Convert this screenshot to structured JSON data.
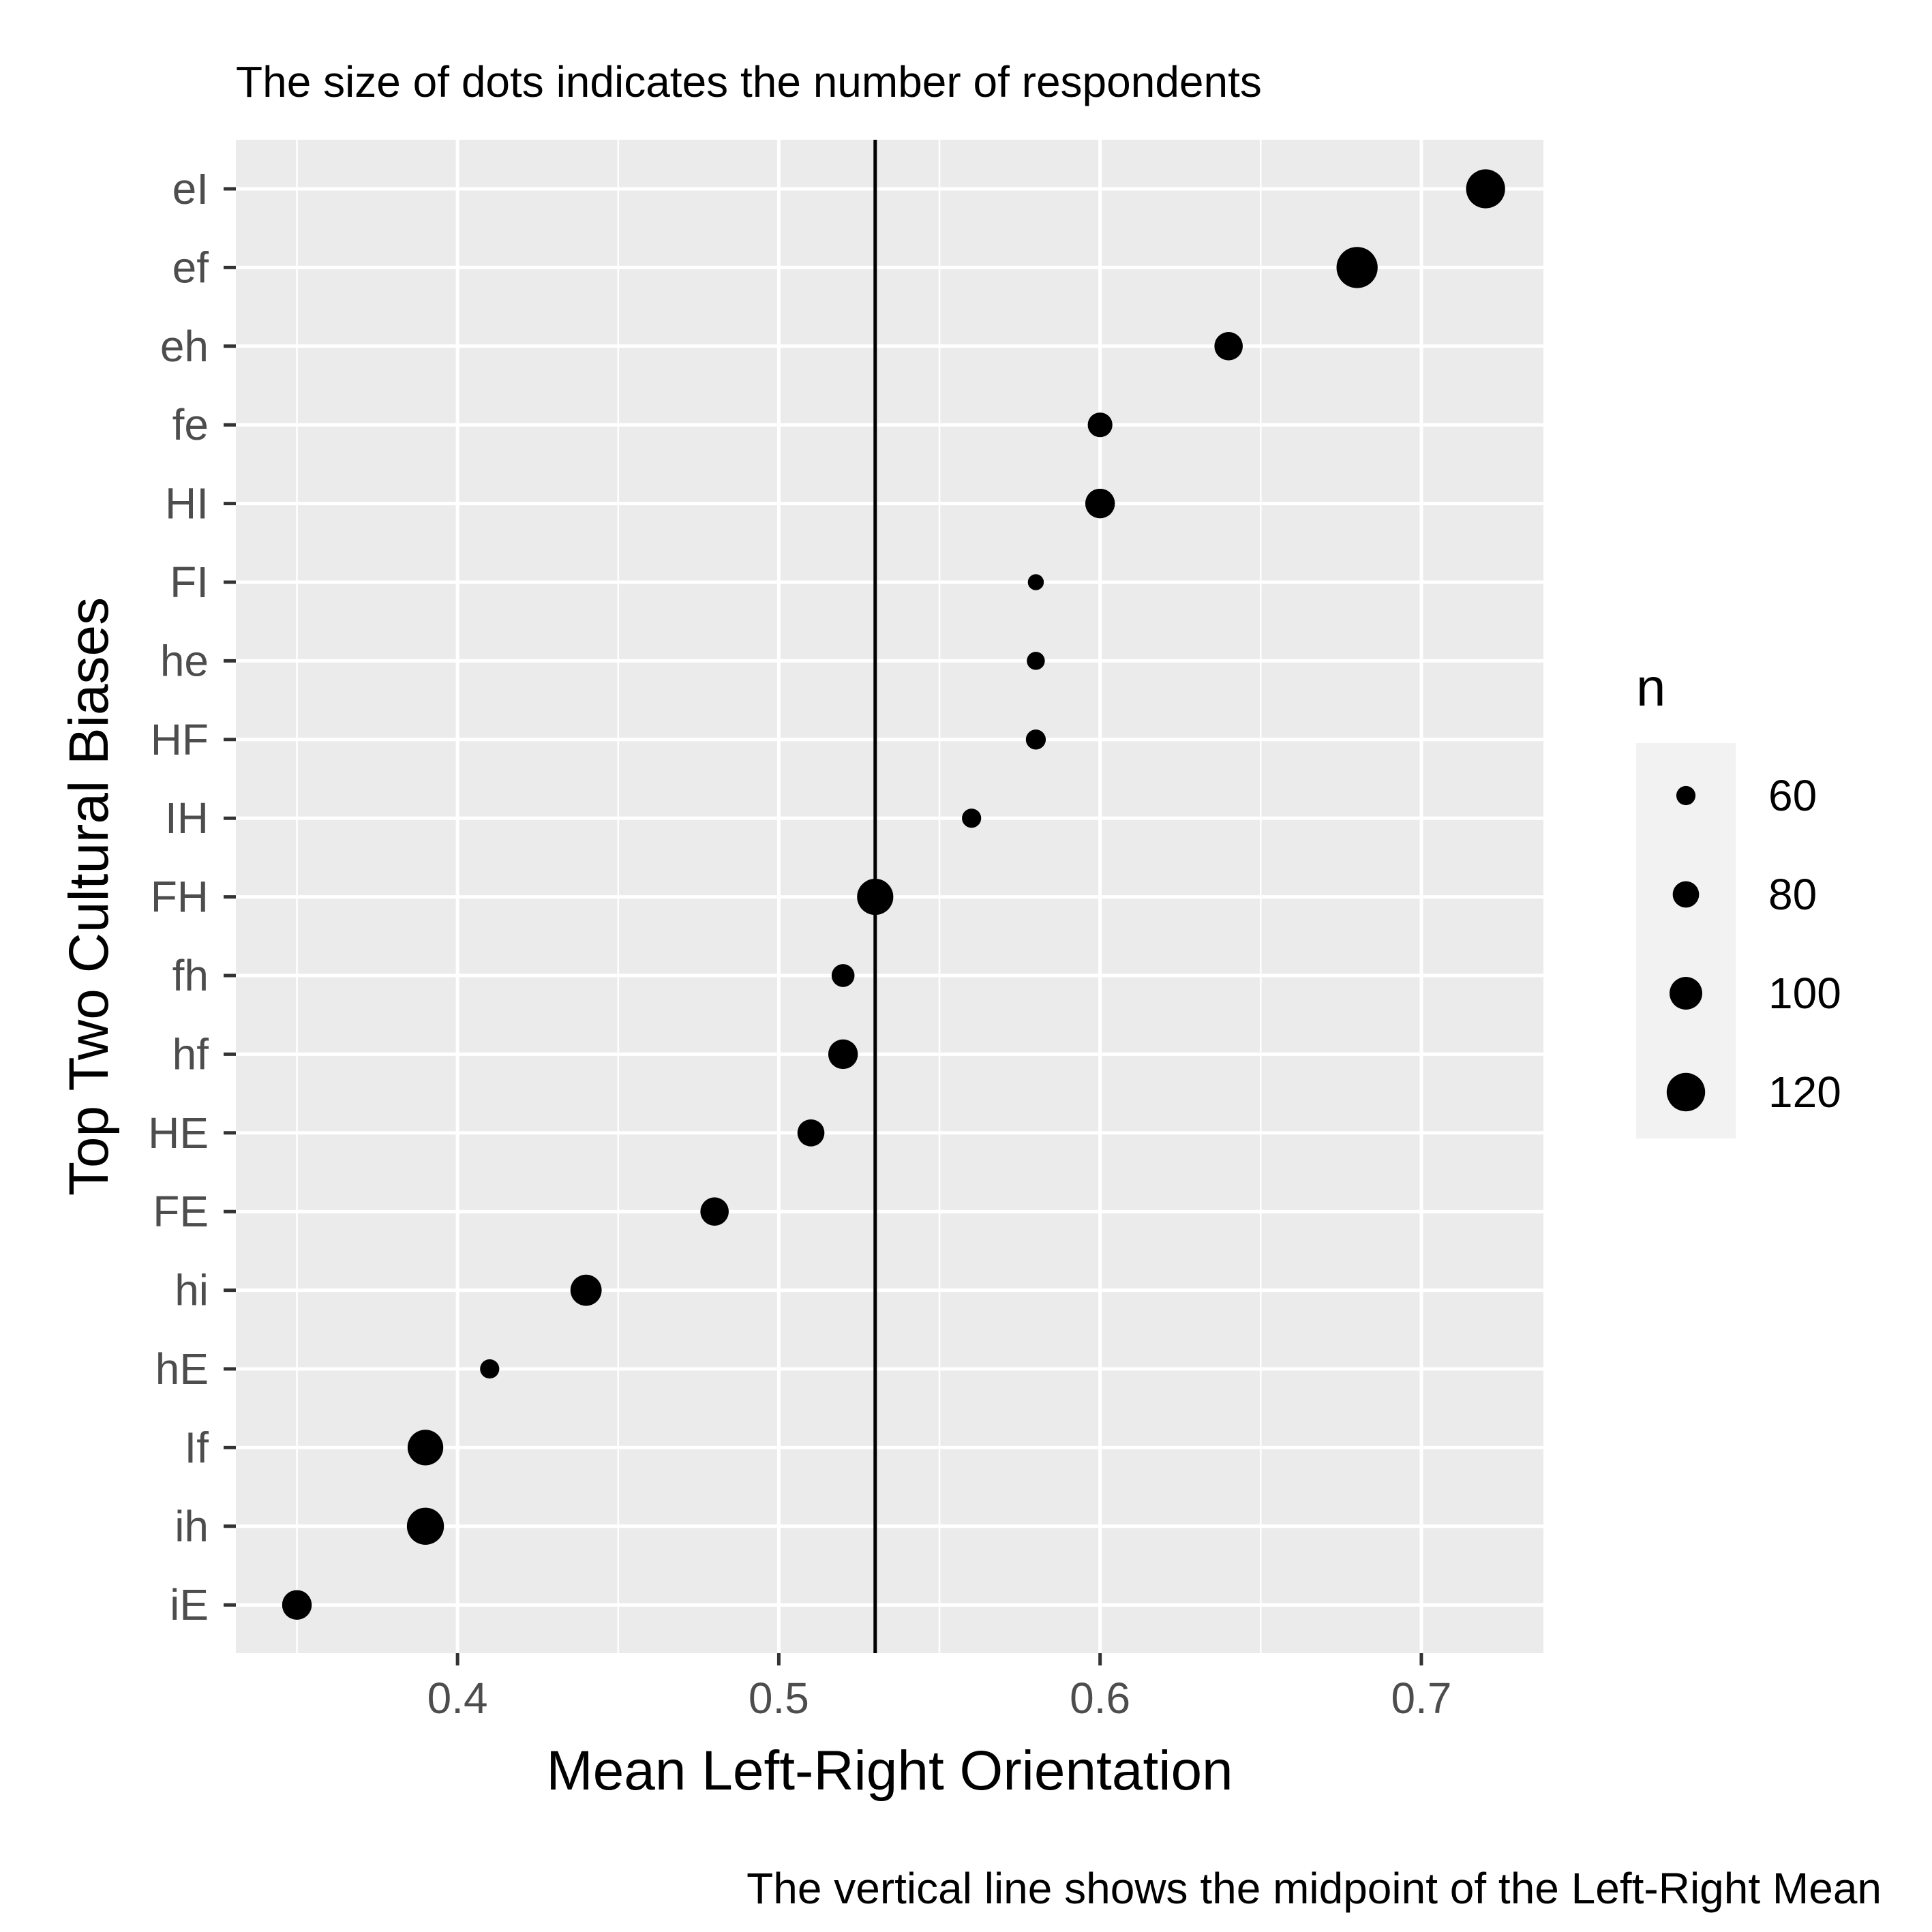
{
  "chart_data": {
    "type": "scatter",
    "subtitle": "The size of dots indicates the number of respondents",
    "caption": "The vertical line shows the midpoint of the Left-Right Mean",
    "xlabel": "Mean Left-Right Orientation",
    "ylabel": "Top Two Cultural Biases",
    "xlim": [
      0.331,
      0.738
    ],
    "x_ticks": [
      0.4,
      0.5,
      0.6,
      0.7
    ],
    "x_tick_labels": [
      "0.4",
      "0.5",
      "0.6",
      "0.7"
    ],
    "x_minor_ticks": [
      0.35,
      0.45,
      0.55,
      0.65
    ],
    "vline_x": 0.53,
    "categories": [
      "eI",
      "ef",
      "eh",
      "fe",
      "HI",
      "FI",
      "he",
      "HF",
      "IH",
      "FH",
      "fh",
      "hf",
      "HE",
      "FE",
      "hi",
      "hE",
      "If",
      "ih",
      "iE"
    ],
    "points": [
      {
        "label": "eI",
        "x": 0.72,
        "n": 122
      },
      {
        "label": "ef",
        "x": 0.68,
        "n": 130
      },
      {
        "label": "eh",
        "x": 0.64,
        "n": 86
      },
      {
        "label": "fe",
        "x": 0.6,
        "n": 75
      },
      {
        "label": "HI",
        "x": 0.6,
        "n": 90
      },
      {
        "label": "FI",
        "x": 0.58,
        "n": 52
      },
      {
        "label": "he",
        "x": 0.58,
        "n": 57
      },
      {
        "label": "HF",
        "x": 0.58,
        "n": 62
      },
      {
        "label": "IH",
        "x": 0.56,
        "n": 60
      },
      {
        "label": "FH",
        "x": 0.53,
        "n": 112
      },
      {
        "label": "fh",
        "x": 0.52,
        "n": 70
      },
      {
        "label": "hf",
        "x": 0.52,
        "n": 90
      },
      {
        "label": "HE",
        "x": 0.51,
        "n": 82
      },
      {
        "label": "FE",
        "x": 0.48,
        "n": 86
      },
      {
        "label": "hi",
        "x": 0.44,
        "n": 95
      },
      {
        "label": "hE",
        "x": 0.41,
        "n": 60
      },
      {
        "label": "If",
        "x": 0.39,
        "n": 110
      },
      {
        "label": "ih",
        "x": 0.39,
        "n": 115
      },
      {
        "label": "iE",
        "x": 0.35,
        "n": 90
      }
    ],
    "size_legend": {
      "title": "n",
      "values": [
        60,
        80,
        100,
        120
      ],
      "labels": [
        "60",
        "80",
        "100",
        "120"
      ]
    },
    "grid": true,
    "legend_position": "right",
    "colors": {
      "panel": "#ebebeb",
      "grid": "#ffffff",
      "points": "#000000",
      "vline": "#000000",
      "legend_key": "#f2f2f2"
    }
  }
}
